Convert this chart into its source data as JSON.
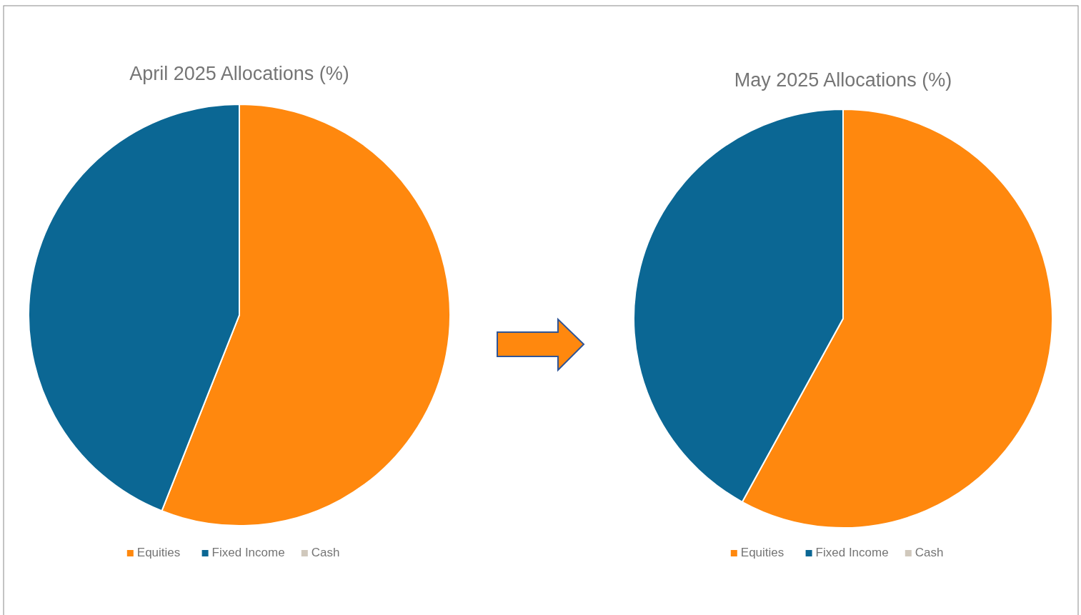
{
  "chart_data": [
    {
      "type": "pie",
      "title": "April 2025 Allocations (%)",
      "categories": [
        "Equities",
        "Fixed Income",
        "Cash"
      ],
      "values": [
        56,
        44,
        0
      ],
      "colors": [
        "#ff880e",
        "#0b6794",
        "#d0c8bc"
      ],
      "legend": "bottom"
    },
    {
      "type": "pie",
      "title": "May 2025 Allocations (%)",
      "categories": [
        "Equities",
        "Fixed Income",
        "Cash"
      ],
      "values": [
        58,
        42,
        0
      ],
      "colors": [
        "#ff880e",
        "#0b6794",
        "#d0c8bc"
      ],
      "legend": "bottom"
    }
  ]
}
